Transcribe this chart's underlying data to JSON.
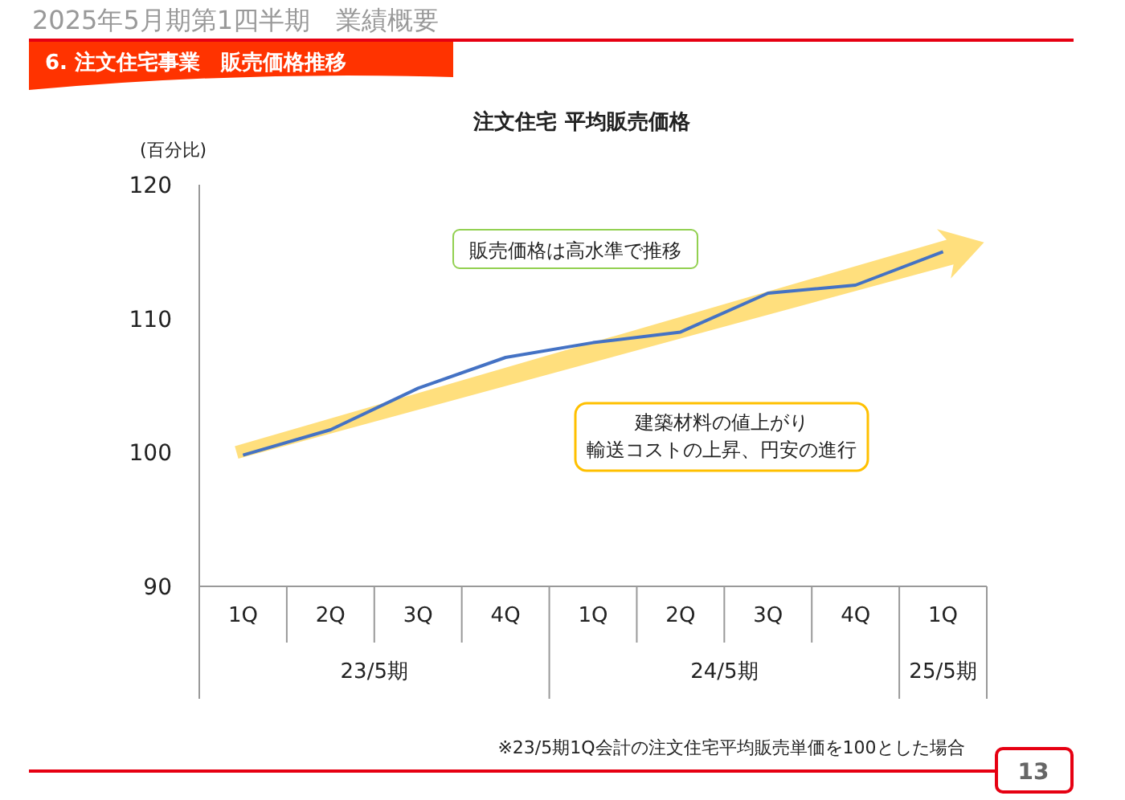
{
  "chart_data": {
    "type": "line",
    "title": "注文住宅 平均販売価格",
    "ylabel": "(百分比)",
    "categories": [
      "1Q",
      "2Q",
      "3Q",
      "4Q",
      "1Q",
      "2Q",
      "3Q",
      "4Q",
      "1Q"
    ],
    "series": [
      {
        "color": "#4472c4",
        "values": [
          99.8,
          101.7,
          104.8,
          107.1,
          108.2,
          109.0,
          111.9,
          112.5,
          115.0
        ]
      }
    ],
    "ylim": [
      90,
      120
    ],
    "yticks": [
      90,
      100,
      110,
      120
    ],
    "grid": false,
    "marker": "none",
    "line_style": "solid",
    "annotations": [
      "2025年5月期第1四半期　業績概要",
      "6. 注文住宅事業　販売価格推移",
      "販売価格は高水準で推移",
      "建築材料の値上がり",
      "輸送コストの上昇、円安の進行",
      "23/5期",
      "24/5期",
      "25/5期",
      "※23/5期1Q会計の注文住宅平均販売単価を100とした場合",
      "13"
    ]
  }
}
